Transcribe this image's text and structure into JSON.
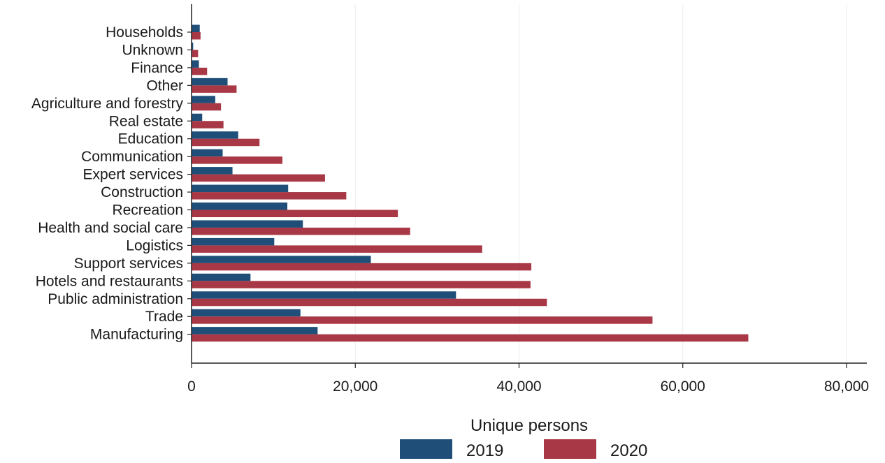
{
  "chart_data": {
    "type": "bar",
    "orientation": "horizontal",
    "title": "",
    "xlabel": "",
    "ylabel": "",
    "xlim": [
      0,
      80000
    ],
    "x_ticks": [
      0,
      20000,
      40000,
      60000,
      80000
    ],
    "x_tick_labels": [
      "0",
      "20,000",
      "40,000",
      "60,000",
      "80,000"
    ],
    "grid": true,
    "legend_position": "bottom",
    "legend_title": "Unique persons",
    "categories": [
      "Households",
      "Unknown",
      "Finance",
      "Other",
      "Agriculture and forestry",
      "Real estate",
      "Education",
      "Communication",
      "Expert services",
      "Construction",
      "Recreation",
      "Health and social care",
      "Logistics",
      "Support services",
      "Hotels and restaurants",
      "Public administration",
      "Trade",
      "Manufacturing"
    ],
    "series": [
      {
        "name": "2019",
        "color": "#1f4e79",
        "values": [
          1000,
          200,
          900,
          4400,
          2900,
          1300,
          5700,
          3800,
          5000,
          11800,
          11700,
          13600,
          10100,
          21900,
          7200,
          32300,
          13300,
          15400
        ]
      },
      {
        "name": "2020",
        "color": "#a83845",
        "values": [
          1100,
          800,
          1900,
          5500,
          3600,
          3900,
          8300,
          11100,
          16300,
          18900,
          25200,
          26700,
          35500,
          41500,
          41400,
          43400,
          56300,
          68000
        ]
      }
    ]
  }
}
